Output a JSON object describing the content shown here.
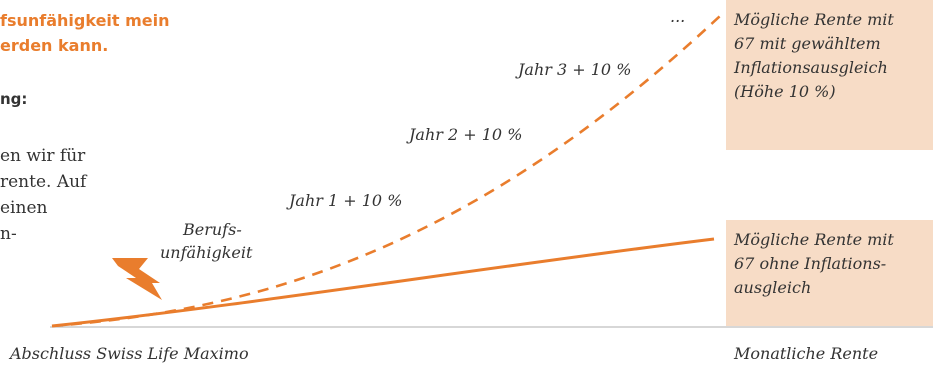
{
  "intro": {
    "headline_lines": [
      "fsunfähigkeit mein",
      "erden kann."
    ],
    "subheading": "ng:",
    "body_lines": [
      "en wir für",
      "rente. Auf",
      "einen",
      "n-"
    ]
  },
  "chart": {
    "labels": {
      "disability": [
        "Berufs-",
        "unfähigkeit"
      ],
      "year1": "Jahr 1 + 10 %",
      "year2": "Jahr 2 + 10 %",
      "year3": "Jahr 3 + 10 %",
      "ellipsis": "..."
    },
    "colors": {
      "accent": "#e97d2d",
      "box_bg": "#f7dcc6",
      "axis": "#bfbfbf",
      "text": "#333333"
    }
  },
  "boxes": {
    "with_inflation": [
      "Mögliche Rente mit",
      "67 mit gewähltem",
      "Inflationsausgleich",
      "(Höhe 10 %)"
    ],
    "without_inflation": [
      "Mögliche Rente mit",
      "67 ohne Inflations-",
      "ausgleich"
    ]
  },
  "axis": {
    "start_label": "Abschluss Swiss Life Maximo",
    "end_label": "Monatliche Rente"
  }
}
